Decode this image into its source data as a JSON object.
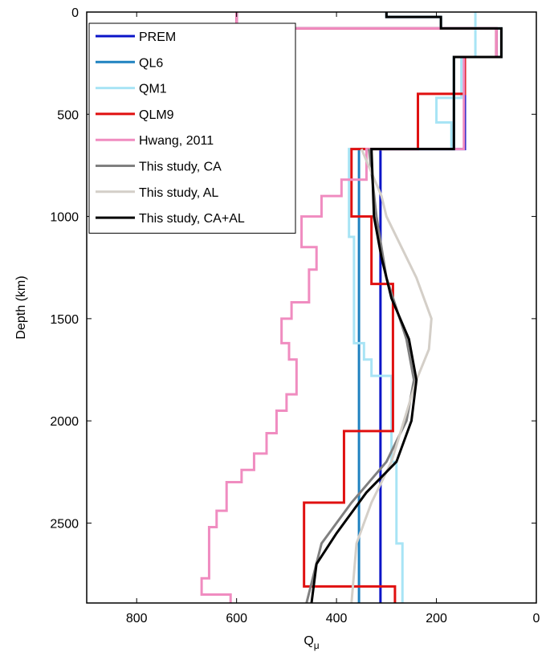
{
  "chart_data": {
    "type": "line",
    "x_label": {
      "text": "Q",
      "subscript": "μ"
    },
    "y_label": "Depth (km)",
    "xlim": [
      900,
      0
    ],
    "xticks": [
      800,
      600,
      400,
      200,
      0
    ],
    "ylim": [
      0,
      2891
    ],
    "yticks": [
      0,
      500,
      1000,
      1500,
      2000,
      2500
    ],
    "legend": "upper-left",
    "series": [
      {
        "name": "PREM",
        "color": "#0a14c8",
        "depth": [
          0,
          80,
          80,
          220,
          220,
          670,
          670,
          2891
        ],
        "values": [
          600,
          600,
          80,
          80,
          143,
          143,
          312,
          312
        ]
      },
      {
        "name": "QL6",
        "color": "#1f82c0",
        "depth": [
          0,
          24,
          24,
          80,
          80,
          220,
          220,
          670,
          670,
          2891
        ],
        "values": [
          300,
          300,
          191,
          191,
          70,
          70,
          165,
          165,
          355,
          355
        ]
      },
      {
        "name": "QM1",
        "color": "#a8e4f5",
        "depth": [
          0,
          220,
          220,
          420,
          420,
          540,
          540,
          670,
          670,
          1100,
          1100,
          1620,
          1620,
          1700,
          1700,
          1780,
          1780,
          2200,
          2200,
          2600,
          2600,
          2891
        ],
        "values": [
          122,
          122,
          150,
          150,
          200,
          200,
          170,
          170,
          375,
          375,
          365,
          365,
          345,
          345,
          330,
          330,
          290,
          290,
          280,
          280,
          268,
          268
        ]
      },
      {
        "name": "QLM9",
        "color": "#e01010",
        "depth": [
          0,
          80,
          80,
          220,
          220,
          400,
          400,
          670,
          670,
          1000,
          1000,
          1330,
          1330,
          2050,
          2050,
          2400,
          2400,
          2810,
          2810,
          2891
        ],
        "values": [
          600,
          600,
          80,
          80,
          143,
          143,
          237,
          237,
          370,
          370,
          330,
          330,
          287,
          287,
          385,
          385,
          465,
          465,
          283,
          283
        ]
      },
      {
        "name": "Hwang, 2011",
        "color": "#f08cc0",
        "depth": [
          0,
          80,
          80,
          220,
          220,
          670,
          670,
          820,
          820,
          900,
          900,
          1000,
          1000,
          1150,
          1150,
          1260,
          1260,
          1420,
          1420,
          1500,
          1500,
          1620,
          1620,
          1700,
          1700,
          1870,
          1870,
          1950,
          1950,
          2060,
          2060,
          2160,
          2160,
          2240,
          2240,
          2300,
          2300,
          2440,
          2440,
          2520,
          2520,
          2770,
          2770,
          2850,
          2850,
          2891
        ],
        "values": [
          600,
          600,
          80,
          80,
          145,
          145,
          340,
          340,
          390,
          390,
          430,
          430,
          470,
          470,
          440,
          440,
          455,
          455,
          490,
          490,
          510,
          510,
          495,
          495,
          480,
          480,
          500,
          500,
          520,
          520,
          540,
          540,
          565,
          565,
          590,
          590,
          620,
          620,
          640,
          640,
          655,
          655,
          670,
          670,
          612,
          612
        ]
      },
      {
        "name": "This study, CA",
        "color": "#808080",
        "depth": [
          670,
          1000,
          1300,
          1600,
          1800,
          2000,
          2200,
          2400,
          2600,
          2891
        ],
        "values": [
          335,
          320,
          300,
          260,
          245,
          260,
          300,
          370,
          430,
          460
        ]
      },
      {
        "name": "This study, AL",
        "color": "#d4cfc8",
        "depth": [
          670,
          900,
          1000,
          1100,
          1300,
          1500,
          1650,
          1800,
          2000,
          2200,
          2400,
          2600,
          2891
        ],
        "values": [
          350,
          310,
          300,
          280,
          240,
          210,
          215,
          240,
          265,
          290,
          330,
          360,
          370
        ]
      },
      {
        "name": "This study, CA+AL",
        "color": "#000000",
        "depth": [
          0,
          24,
          24,
          80,
          80,
          220,
          220,
          670,
          670,
          1000,
          1200,
          1400,
          1600,
          1800,
          2000,
          2200,
          2350,
          2550,
          2700,
          2891
        ],
        "values": [
          300,
          300,
          191,
          191,
          70,
          70,
          165,
          165,
          330,
          325,
          310,
          290,
          255,
          240,
          250,
          280,
          340,
          400,
          440,
          450
        ]
      }
    ]
  }
}
